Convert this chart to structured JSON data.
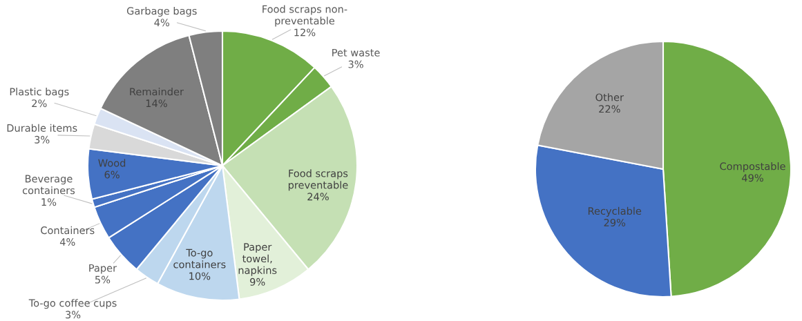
{
  "chart_data": [
    {
      "type": "pie",
      "categories": [
        "Food scraps non-\npreventable",
        "Pet waste",
        "Food scraps\npreventable",
        "Paper\ntowel,\nnapkins",
        "To-go\ncontainers",
        "To-go coffee cups",
        "Paper",
        "Containers",
        "Beverage\ncontainers",
        "Wood",
        "Durable items",
        "Plastic bags",
        "Remainder",
        "Garbage bags"
      ],
      "values": [
        12,
        3,
        24,
        9,
        10,
        3,
        5,
        4,
        1,
        6,
        3,
        2,
        14,
        4
      ],
      "value_labels": [
        "12%",
        "3%",
        "24%",
        "9%",
        "10%",
        "3%",
        "5%",
        "4%",
        "1%",
        "6%",
        "3%",
        "2%",
        "14%",
        "4%"
      ],
      "colors": [
        "#70ad47",
        "#70ad47",
        "#c5e0b4",
        "#e2f0d9",
        "#bdd7ee",
        "#bdd7ee",
        "#4472c4",
        "#4472c4",
        "#4472c4",
        "#4472c4",
        "#d9d9d9",
        "#dae3f3",
        "#7f7f7f",
        "#7f7f7f"
      ]
    },
    {
      "type": "pie",
      "categories": [
        "Compostable",
        "Recyclable",
        "Other"
      ],
      "values": [
        49,
        29,
        22
      ],
      "value_labels": [
        "49%",
        "29%",
        "22%"
      ],
      "colors": [
        "#70ad47",
        "#4472c4",
        "#a5a5a5"
      ]
    }
  ]
}
